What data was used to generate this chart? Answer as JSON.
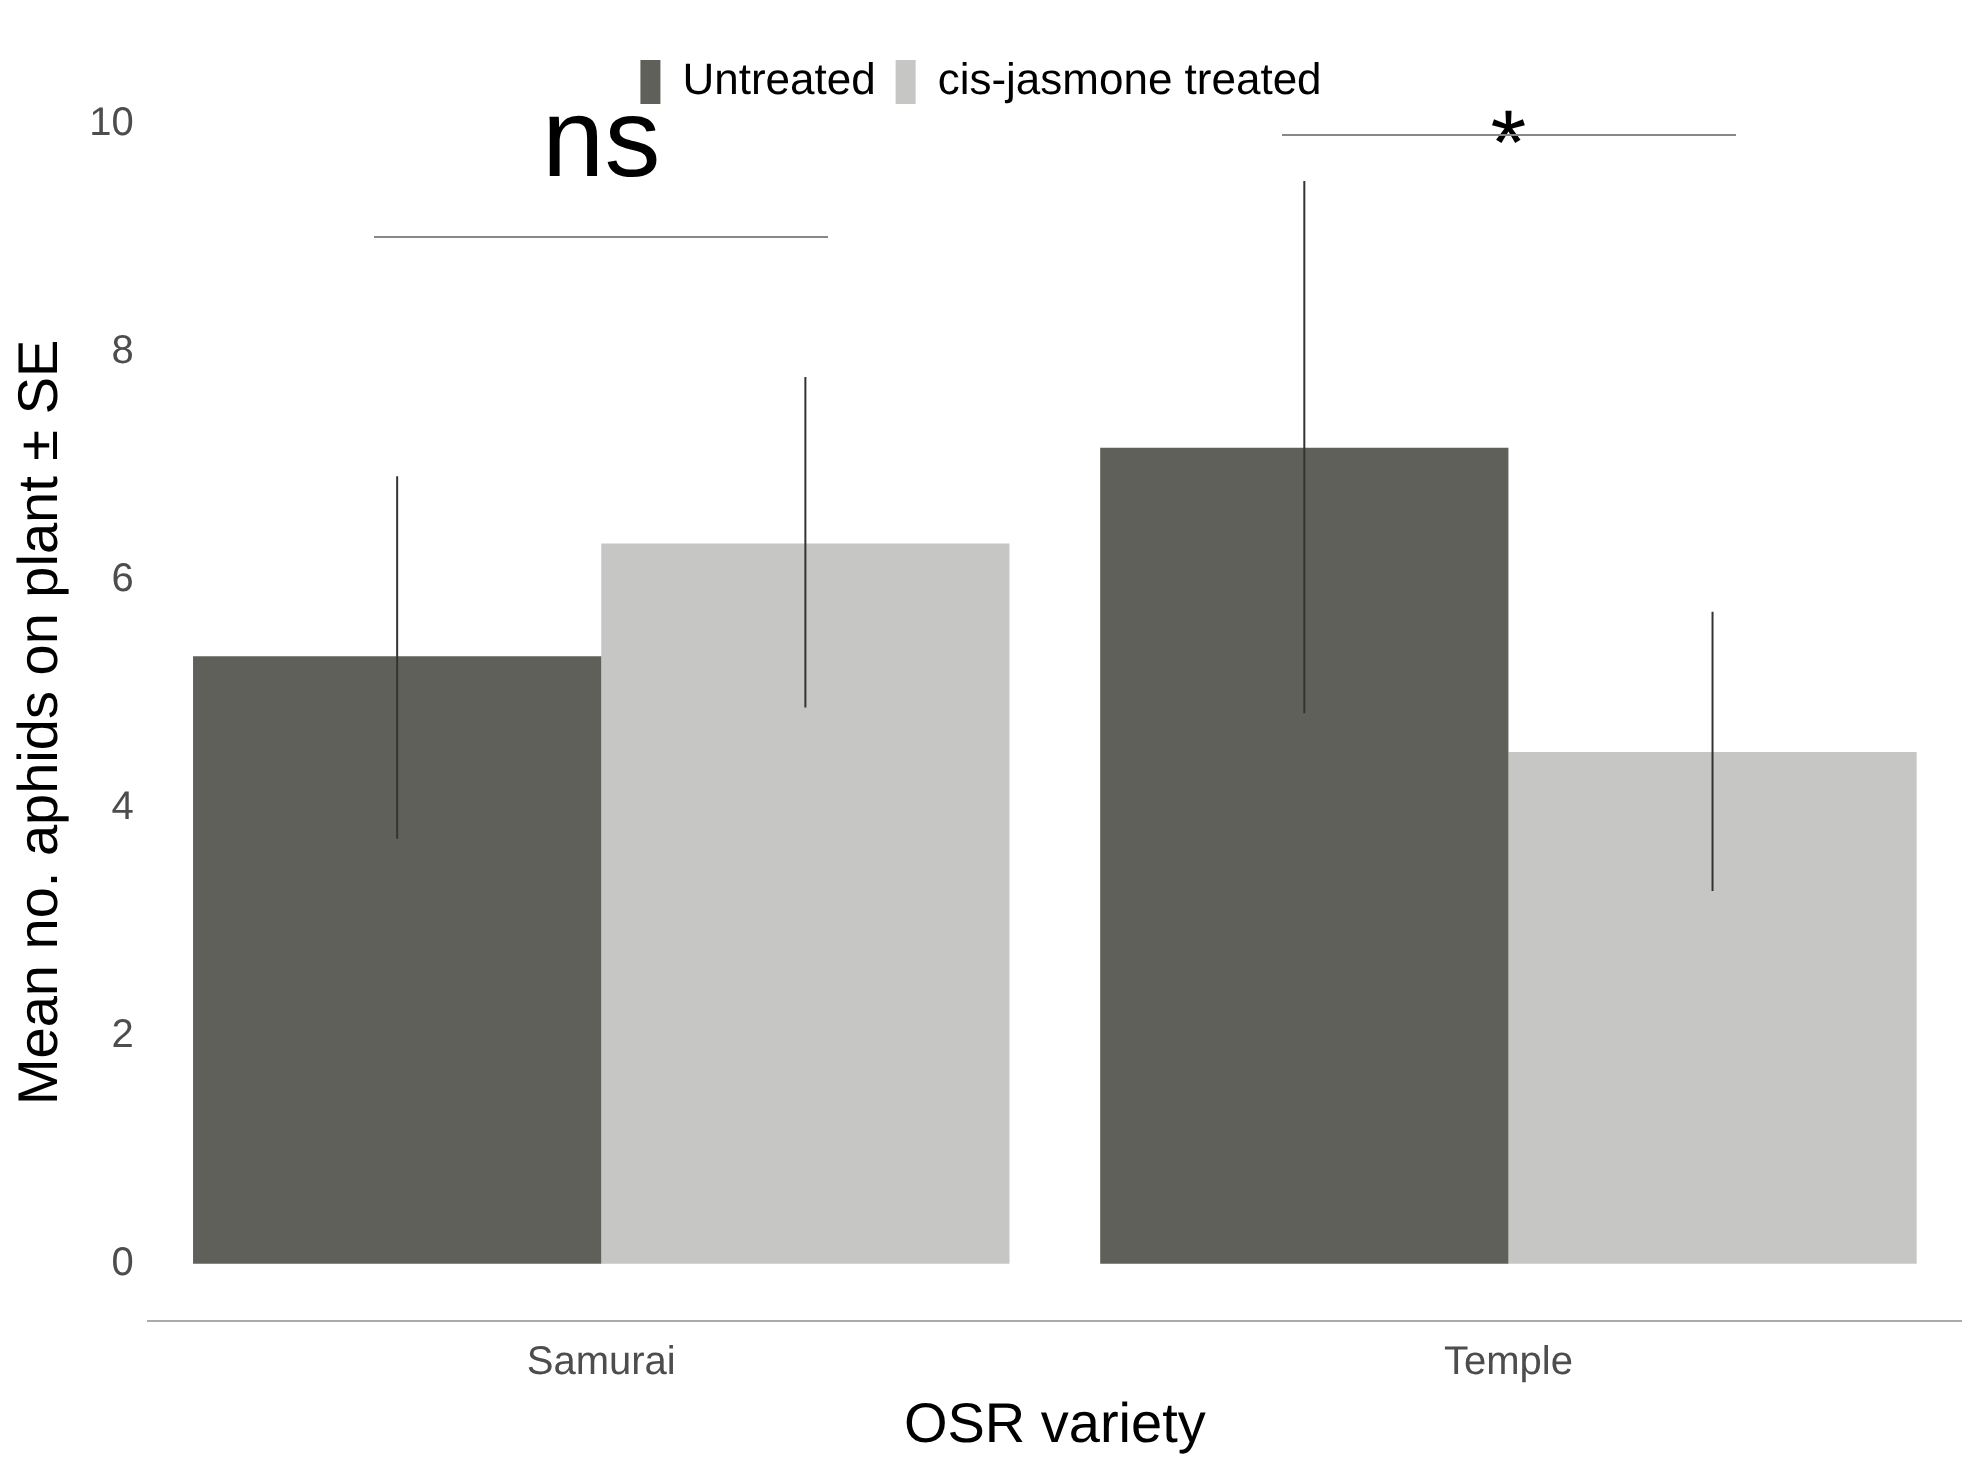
{
  "chart_data": {
    "type": "bar",
    "xlabel": "OSR variety",
    "ylabel": "Mean no. aphids on plant ± SE",
    "categories": [
      "Samurai",
      "Temple"
    ],
    "series": [
      {
        "name": "Untreated",
        "color": "#60605a",
        "values": [
          5.33,
          7.16
        ],
        "errors": [
          [
            3.73,
            6.91
          ],
          [
            4.83,
            9.5
          ]
        ]
      },
      {
        "name": "cis-jasmone treated",
        "color": "#c6c6c4",
        "values": [
          6.32,
          4.49
        ],
        "errors": [
          [
            4.88,
            7.78
          ],
          [
            3.27,
            5.72
          ]
        ]
      }
    ],
    "ylim": [
      -0.5,
      10
    ],
    "yticks": [
      0,
      2,
      4,
      6,
      8,
      10
    ],
    "grid": false,
    "legend": "top",
    "annotations": [
      "ns",
      "*"
    ]
  }
}
